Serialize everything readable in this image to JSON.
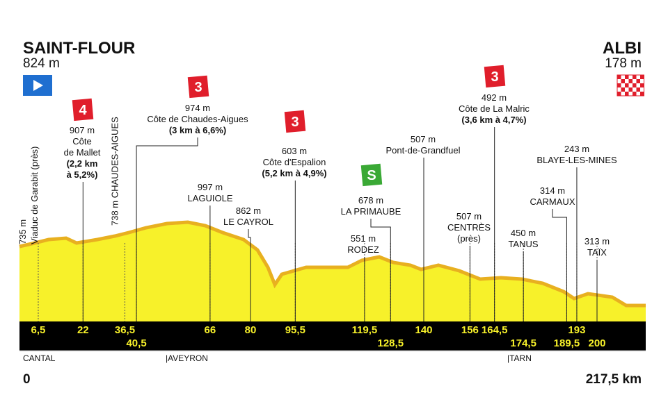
{
  "start": {
    "name": "SAINT-FLOUR",
    "altitude": "824 m"
  },
  "finish": {
    "name": "ALBI",
    "altitude": "178 m"
  },
  "distance": {
    "start": "0",
    "end": "217,5 km"
  },
  "regions": [
    "CANTAL",
    "|AVEYRON",
    "|TARN"
  ],
  "km_markers": [
    {
      "value": 6.5,
      "label": "6,5"
    },
    {
      "value": 22,
      "label": "22"
    },
    {
      "value": 36.5,
      "label": "36,5"
    },
    {
      "value": 40.5,
      "label": "40,5"
    },
    {
      "value": 66,
      "label": "66"
    },
    {
      "value": 80,
      "label": "80"
    },
    {
      "value": 95.5,
      "label": "95,5"
    },
    {
      "value": 119.5,
      "label": "119,5"
    },
    {
      "value": 128.5,
      "label": "128,5"
    },
    {
      "value": 140,
      "label": "140"
    },
    {
      "value": 156,
      "label": "156"
    },
    {
      "value": 164.5,
      "label": "164,5"
    },
    {
      "value": 174.5,
      "label": "174,5"
    },
    {
      "value": 189.5,
      "label": "189,5"
    },
    {
      "value": 193,
      "label": "193"
    },
    {
      "value": 200,
      "label": "200"
    }
  ],
  "points": [
    {
      "lines": [
        "735 m",
        "Viaduc de Garabit (près)"
      ]
    },
    {
      "badge": "4",
      "lines": [
        "907 m",
        "Côte",
        "de Mallet"
      ],
      "bold": [
        "(2,2 km",
        "à 5,2%)"
      ]
    },
    {
      "lines": [
        "738 m CHAUDES-AIGUES"
      ]
    },
    {
      "badge": "3",
      "lines": [
        "974 m",
        "Côte de Chaudes-Aigues"
      ],
      "bold": [
        "(3 km à 6,6%)"
      ]
    },
    {
      "lines": [
        "997 m",
        "LAGUIOLE"
      ]
    },
    {
      "lines": [
        "862 m",
        "LE CAYROL"
      ]
    },
    {
      "badge": "3",
      "lines": [
        "603 m",
        "Côte d'Espalion"
      ],
      "bold": [
        "(5,2 km à 4,9%)"
      ]
    },
    {
      "lines": [
        "551 m",
        "RODEZ"
      ]
    },
    {
      "badge": "S",
      "lines": [
        "678 m",
        "LA PRIMAUBE"
      ]
    },
    {
      "lines": [
        "507 m",
        "Pont-de-Grandfuel"
      ]
    },
    {
      "lines": [
        "507 m",
        "CENTRÈS",
        "(près)"
      ]
    },
    {
      "badge": "3",
      "lines": [
        "492 m",
        "Côte de La Malric"
      ],
      "bold": [
        "(3,6 km à 4,7%)"
      ]
    },
    {
      "lines": [
        "450 m",
        "TANUS"
      ]
    },
    {
      "lines": [
        "314 m",
        "CARMAUX"
      ]
    },
    {
      "lines": [
        "243 m",
        "BLAYE-LES-MINES"
      ]
    },
    {
      "lines": [
        "313 m",
        "TAÏX"
      ]
    }
  ]
}
